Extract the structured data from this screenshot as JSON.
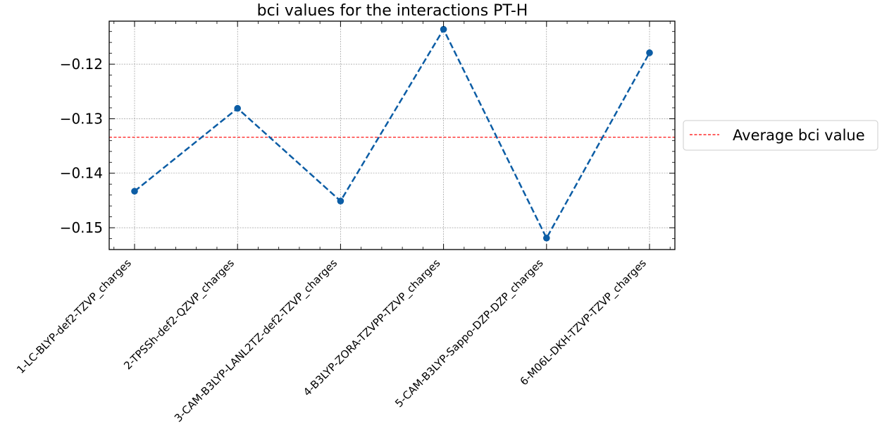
{
  "chart_data": {
    "type": "line",
    "title": "bci values for the interactions PT-H",
    "xlabel": "",
    "ylabel": "",
    "categories": [
      "1-LC-BLYP-def2-TZVP_charges",
      "2-TPSSh-def2-QZVP_charges",
      "3-CAM-B3LYP-LANL2TZ-def2-TZVP_charges",
      "4-B3LYP-ZORA-TZVPP-TZVP_charges",
      "5-CAM-B3LYP-Sappo-DZP-DZP_charges",
      "6-M06L-DKH-TZVP-TZVP_charges"
    ],
    "series": [
      {
        "values": [
          -0.1433,
          -0.1281,
          -0.1451,
          -0.1136,
          -0.1519,
          -0.1179
        ],
        "color": "#0c5da5",
        "style": "dashed",
        "marker": "circle"
      }
    ],
    "reference_lines": [
      {
        "name": "Average bci value",
        "value": -0.1334,
        "color": "#ff0000",
        "style": "dashed"
      }
    ],
    "ylim": [
      -0.154,
      -0.1121
    ],
    "yticks": [
      -0.12,
      -0.13,
      -0.14,
      -0.15
    ],
    "ytick_labels": [
      "−0.12",
      "−0.13",
      "−0.14",
      "−0.15"
    ],
    "grid": true,
    "legend_position": "outside-right"
  }
}
